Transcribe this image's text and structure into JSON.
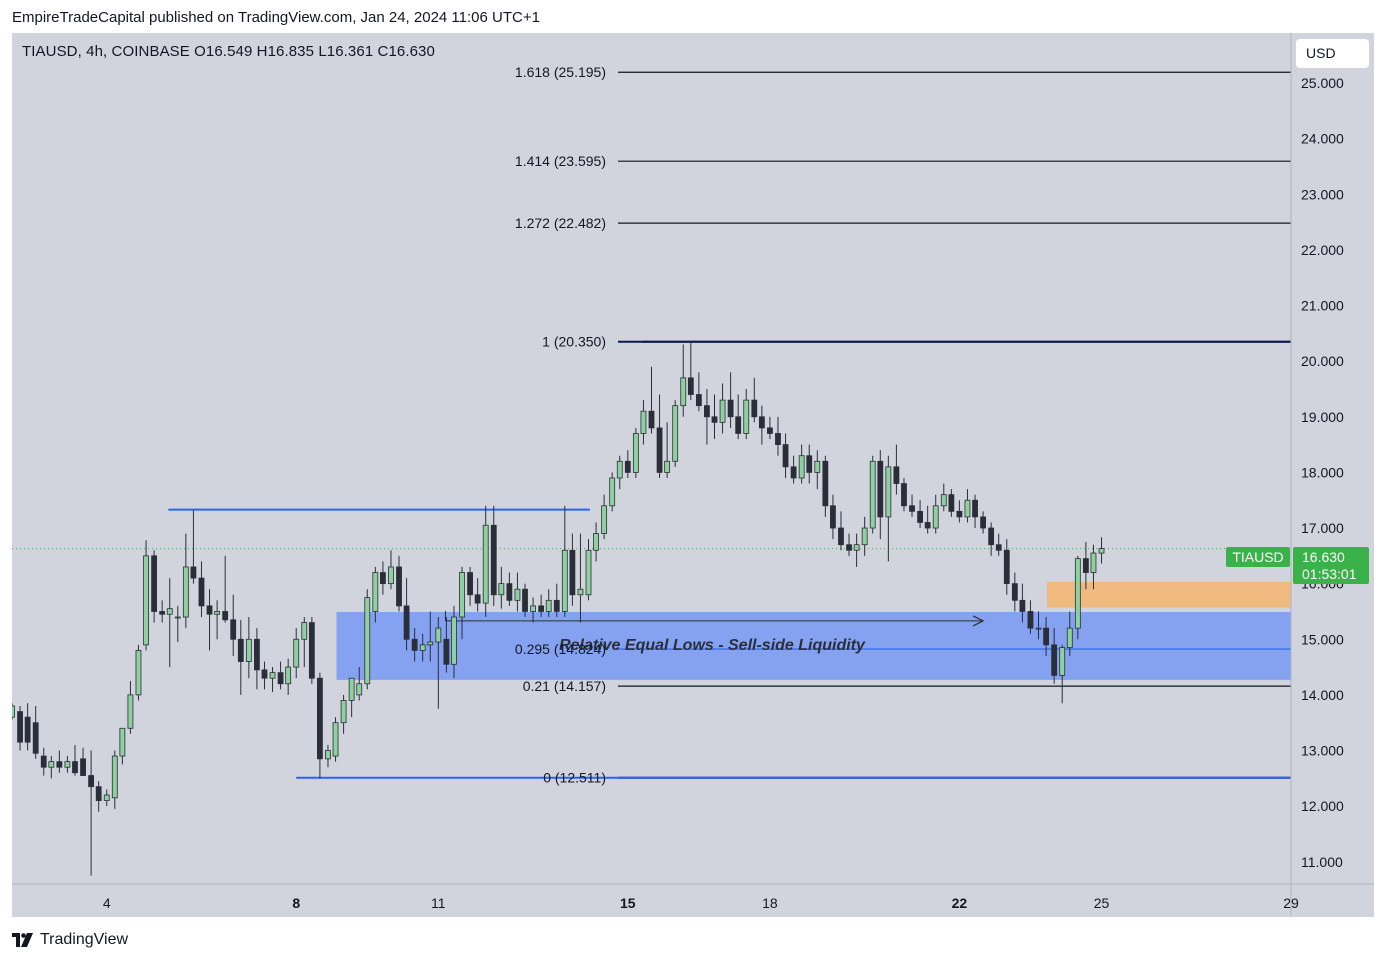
{
  "header": {
    "publisher_line": "EmpireTradeCapital published on TradingView.com, Jan 24, 2024 11:06 UTC+1"
  },
  "symbol_info": {
    "text": "TIAUSD, 4h, COINBASE  O16.549  H16.835  L16.361  C16.630"
  },
  "currency_button": {
    "label": "USD"
  },
  "price_tag": {
    "symbol": "TIAUSD",
    "price": "16.630",
    "countdown": "01:53:01"
  },
  "footer": {
    "brand": "TradingView"
  },
  "annotation": {
    "text": "Relative Equal Lows - Sell-side Liquidity"
  },
  "colors": {
    "background": "#d1d4dc",
    "bull": "#8fd19e",
    "bear": "#2a2e39",
    "fib_dark": "#0d1b4c",
    "blue_line": "#2962ff",
    "zone_blue": "#7b9cf2",
    "zone_orange": "#f3b676",
    "price_green": "#3bb14a"
  },
  "chart_data": {
    "type": "candlestick",
    "symbol": "TIAUSD",
    "timeframe": "4h",
    "exchange": "COINBASE",
    "ohlc_last": {
      "open": 16.549,
      "high": 16.835,
      "low": 16.361,
      "close": 16.63
    },
    "y_axis": {
      "ticks": [
        "11.000",
        "12.000",
        "13.000",
        "14.000",
        "15.000",
        "16.000",
        "17.000",
        "18.000",
        "19.000",
        "20.000",
        "21.000",
        "22.000",
        "23.000",
        "24.000",
        "25.000"
      ],
      "range": [
        10.6,
        25.9
      ]
    },
    "x_axis": {
      "ticks": [
        {
          "label": "4",
          "day": 4,
          "bold": false
        },
        {
          "label": "8",
          "day": 8,
          "bold": true
        },
        {
          "label": "11",
          "day": 11,
          "bold": false
        },
        {
          "label": "15",
          "day": 15,
          "bold": true
        },
        {
          "label": "18",
          "day": 18,
          "bold": false
        },
        {
          "label": "22",
          "day": 22,
          "bold": true
        },
        {
          "label": "25",
          "day": 25,
          "bold": false
        },
        {
          "label": "29",
          "day": 29,
          "bold": false
        }
      ],
      "range_days": [
        2.0,
        29.0
      ]
    },
    "fib_levels": [
      {
        "label": "1.618 (25.195)",
        "price": 25.195
      },
      {
        "label": "1.414 (23.595)",
        "price": 23.595
      },
      {
        "label": "1.272 (22.482)",
        "price": 22.482
      },
      {
        "label": "1 (20.350)",
        "price": 20.35
      },
      {
        "label": "0.295 (14.824)",
        "price": 14.824
      },
      {
        "label": "0.21 (14.157)",
        "price": 14.157
      },
      {
        "label": "0 (12.511)",
        "price": 12.511
      }
    ],
    "horizontal_lines": [
      {
        "price": 17.33,
        "from_day": 5.3,
        "to_day": 14.2
      },
      {
        "price": 20.35,
        "from_day": 15.3,
        "to_day": 29.0
      },
      {
        "price": 12.511,
        "from_day": 8.0,
        "to_day": 29.0
      }
    ],
    "zones": [
      {
        "name": "liquidity-zone",
        "top": 15.49,
        "bottom": 14.27,
        "from_day": 8.85,
        "to_day": 29.0
      },
      {
        "name": "order-block",
        "top": 16.03,
        "bottom": 15.57,
        "from_day": 23.85,
        "to_day": 29.0
      }
    ],
    "arrow": {
      "price": 15.33,
      "from_day": 11.15,
      "to_day": 22.5
    },
    "last_price": 16.63,
    "candles": [
      {
        "day": 2.0,
        "o": 13.6,
        "h": 13.85,
        "l": 13.55,
        "c": 13.8
      },
      {
        "day": 2.17,
        "o": 13.7,
        "h": 13.8,
        "l": 13.0,
        "c": 13.15
      },
      {
        "day": 2.33,
        "o": 13.6,
        "h": 13.85,
        "l": 13.0,
        "c": 13.15
      },
      {
        "day": 2.5,
        "o": 13.5,
        "h": 13.8,
        "l": 12.85,
        "c": 12.95
      },
      {
        "day": 2.67,
        "o": 12.9,
        "h": 13.05,
        "l": 12.55,
        "c": 12.7
      },
      {
        "day": 2.83,
        "o": 12.7,
        "h": 12.9,
        "l": 12.5,
        "c": 12.8
      },
      {
        "day": 3.0,
        "o": 12.8,
        "h": 13.0,
        "l": 12.6,
        "c": 12.7
      },
      {
        "day": 3.17,
        "o": 12.7,
        "h": 12.9,
        "l": 12.6,
        "c": 12.8
      },
      {
        "day": 3.33,
        "o": 12.8,
        "h": 13.1,
        "l": 12.55,
        "c": 12.6
      },
      {
        "day": 3.5,
        "o": 12.85,
        "h": 13.05,
        "l": 12.7,
        "c": 12.55
      },
      {
        "day": 3.67,
        "o": 12.55,
        "h": 13.0,
        "l": 10.75,
        "c": 12.35
      },
      {
        "day": 3.83,
        "o": 12.35,
        "h": 12.45,
        "l": 11.9,
        "c": 12.1
      },
      {
        "day": 4.0,
        "o": 12.1,
        "h": 12.3,
        "l": 12.0,
        "c": 12.2
      },
      {
        "day": 4.17,
        "o": 12.15,
        "h": 13.0,
        "l": 11.95,
        "c": 12.9
      },
      {
        "day": 4.33,
        "o": 12.9,
        "h": 13.3,
        "l": 12.75,
        "c": 13.4
      },
      {
        "day": 4.5,
        "o": 13.4,
        "h": 14.25,
        "l": 13.3,
        "c": 14.0
      },
      {
        "day": 4.67,
        "o": 14.0,
        "h": 14.9,
        "l": 13.9,
        "c": 14.8
      },
      {
        "day": 4.83,
        "o": 14.9,
        "h": 16.78,
        "l": 14.8,
        "c": 16.5
      },
      {
        "day": 5.0,
        "o": 16.5,
        "h": 16.6,
        "l": 15.3,
        "c": 15.5
      },
      {
        "day": 5.17,
        "o": 15.5,
        "h": 15.7,
        "l": 15.3,
        "c": 15.45
      },
      {
        "day": 5.33,
        "o": 15.45,
        "h": 16.1,
        "l": 14.5,
        "c": 15.55
      },
      {
        "day": 5.5,
        "o": 15.4,
        "h": 15.6,
        "l": 14.95,
        "c": 15.4
      },
      {
        "day": 5.67,
        "o": 15.4,
        "h": 16.9,
        "l": 15.2,
        "c": 16.3
      },
      {
        "day": 5.83,
        "o": 16.3,
        "h": 17.32,
        "l": 16.0,
        "c": 16.1
      },
      {
        "day": 6.0,
        "o": 16.1,
        "h": 16.4,
        "l": 15.4,
        "c": 15.6
      },
      {
        "day": 6.17,
        "o": 15.6,
        "h": 15.9,
        "l": 14.8,
        "c": 15.45
      },
      {
        "day": 6.33,
        "o": 15.45,
        "h": 15.7,
        "l": 15.0,
        "c": 15.5
      },
      {
        "day": 6.5,
        "o": 15.5,
        "h": 16.5,
        "l": 15.3,
        "c": 15.35
      },
      {
        "day": 6.67,
        "o": 15.35,
        "h": 15.8,
        "l": 14.7,
        "c": 15.0
      },
      {
        "day": 6.83,
        "o": 15.0,
        "h": 15.35,
        "l": 14.0,
        "c": 14.6
      },
      {
        "day": 7.0,
        "o": 14.6,
        "h": 15.4,
        "l": 14.3,
        "c": 15.0
      },
      {
        "day": 7.17,
        "o": 15.0,
        "h": 15.2,
        "l": 14.1,
        "c": 14.45
      },
      {
        "day": 7.33,
        "o": 14.45,
        "h": 14.6,
        "l": 14.1,
        "c": 14.3
      },
      {
        "day": 7.5,
        "o": 14.3,
        "h": 14.5,
        "l": 14.05,
        "c": 14.4
      },
      {
        "day": 7.67,
        "o": 14.4,
        "h": 14.6,
        "l": 14.1,
        "c": 14.2
      },
      {
        "day": 7.83,
        "o": 14.2,
        "h": 14.65,
        "l": 14.0,
        "c": 14.5
      },
      {
        "day": 8.0,
        "o": 14.5,
        "h": 15.2,
        "l": 14.3,
        "c": 15.0
      },
      {
        "day": 8.17,
        "o": 15.0,
        "h": 15.4,
        "l": 14.5,
        "c": 15.3
      },
      {
        "day": 8.33,
        "o": 15.3,
        "h": 15.4,
        "l": 14.2,
        "c": 14.3
      },
      {
        "day": 8.5,
        "o": 14.3,
        "h": 14.4,
        "l": 12.5,
        "c": 12.85
      },
      {
        "day": 8.67,
        "o": 12.85,
        "h": 13.1,
        "l": 12.7,
        "c": 13.0
      },
      {
        "day": 8.83,
        "o": 12.9,
        "h": 13.6,
        "l": 12.8,
        "c": 13.5
      },
      {
        "day": 9.0,
        "o": 13.5,
        "h": 14.0,
        "l": 13.3,
        "c": 13.9
      },
      {
        "day": 9.17,
        "o": 13.9,
        "h": 14.3,
        "l": 13.6,
        "c": 14.3
      },
      {
        "day": 9.33,
        "o": 14.0,
        "h": 14.5,
        "l": 13.9,
        "c": 14.2
      },
      {
        "day": 9.5,
        "o": 14.2,
        "h": 15.9,
        "l": 14.1,
        "c": 15.75
      },
      {
        "day": 9.67,
        "o": 15.5,
        "h": 16.3,
        "l": 15.3,
        "c": 16.2
      },
      {
        "day": 9.83,
        "o": 16.2,
        "h": 16.4,
        "l": 15.8,
        "c": 16.0
      },
      {
        "day": 10.0,
        "o": 16.0,
        "h": 16.6,
        "l": 15.9,
        "c": 16.3
      },
      {
        "day": 10.17,
        "o": 16.3,
        "h": 16.5,
        "l": 15.5,
        "c": 15.6
      },
      {
        "day": 10.33,
        "o": 15.6,
        "h": 16.1,
        "l": 14.8,
        "c": 15.0
      },
      {
        "day": 10.5,
        "o": 15.0,
        "h": 15.2,
        "l": 14.6,
        "c": 14.8
      },
      {
        "day": 10.67,
        "o": 14.8,
        "h": 15.1,
        "l": 14.6,
        "c": 14.9
      },
      {
        "day": 10.83,
        "o": 14.9,
        "h": 15.5,
        "l": 14.6,
        "c": 14.95
      },
      {
        "day": 11.0,
        "o": 14.95,
        "h": 15.4,
        "l": 13.75,
        "c": 15.2
      },
      {
        "day": 11.17,
        "o": 15.0,
        "h": 15.4,
        "l": 14.4,
        "c": 14.55
      },
      {
        "day": 11.33,
        "o": 14.55,
        "h": 15.6,
        "l": 14.3,
        "c": 15.4
      },
      {
        "day": 11.5,
        "o": 15.4,
        "h": 16.3,
        "l": 15.0,
        "c": 16.2
      },
      {
        "day": 11.67,
        "o": 16.2,
        "h": 16.3,
        "l": 15.6,
        "c": 15.8
      },
      {
        "day": 11.83,
        "o": 15.8,
        "h": 16.1,
        "l": 15.5,
        "c": 15.65
      },
      {
        "day": 12.0,
        "o": 15.65,
        "h": 17.4,
        "l": 15.4,
        "c": 17.05
      },
      {
        "day": 12.17,
        "o": 17.05,
        "h": 17.4,
        "l": 15.6,
        "c": 15.8
      },
      {
        "day": 12.33,
        "o": 15.8,
        "h": 16.3,
        "l": 15.55,
        "c": 16.0
      },
      {
        "day": 12.5,
        "o": 16.0,
        "h": 16.2,
        "l": 15.6,
        "c": 15.7
      },
      {
        "day": 12.67,
        "o": 15.7,
        "h": 16.2,
        "l": 15.5,
        "c": 15.9
      },
      {
        "day": 12.83,
        "o": 15.9,
        "h": 16.0,
        "l": 15.4,
        "c": 15.5
      },
      {
        "day": 13.0,
        "o": 15.5,
        "h": 15.75,
        "l": 15.3,
        "c": 15.6
      },
      {
        "day": 13.17,
        "o": 15.6,
        "h": 15.8,
        "l": 15.4,
        "c": 15.5
      },
      {
        "day": 13.33,
        "o": 15.5,
        "h": 15.9,
        "l": 15.4,
        "c": 15.7
      },
      {
        "day": 13.5,
        "o": 15.7,
        "h": 16.0,
        "l": 15.4,
        "c": 15.5
      },
      {
        "day": 13.67,
        "o": 15.5,
        "h": 17.4,
        "l": 15.4,
        "c": 16.6
      },
      {
        "day": 13.83,
        "o": 16.6,
        "h": 16.9,
        "l": 15.6,
        "c": 15.8
      },
      {
        "day": 14.0,
        "o": 15.8,
        "h": 16.9,
        "l": 15.3,
        "c": 15.9
      },
      {
        "day": 14.17,
        "o": 15.8,
        "h": 16.8,
        "l": 15.7,
        "c": 16.6
      },
      {
        "day": 14.33,
        "o": 16.6,
        "h": 17.1,
        "l": 16.4,
        "c": 16.9
      },
      {
        "day": 14.5,
        "o": 16.9,
        "h": 17.6,
        "l": 16.8,
        "c": 17.4
      },
      {
        "day": 14.67,
        "o": 17.4,
        "h": 18.0,
        "l": 17.3,
        "c": 17.9
      },
      {
        "day": 14.83,
        "o": 17.9,
        "h": 18.3,
        "l": 17.7,
        "c": 18.2
      },
      {
        "day": 15.0,
        "o": 18.2,
        "h": 18.4,
        "l": 17.9,
        "c": 18.0
      },
      {
        "day": 15.17,
        "o": 18.0,
        "h": 18.8,
        "l": 17.9,
        "c": 18.7
      },
      {
        "day": 15.33,
        "o": 18.7,
        "h": 19.3,
        "l": 18.5,
        "c": 19.1
      },
      {
        "day": 15.5,
        "o": 19.1,
        "h": 19.9,
        "l": 18.7,
        "c": 18.8
      },
      {
        "day": 15.67,
        "o": 18.8,
        "h": 19.4,
        "l": 17.9,
        "c": 18.0
      },
      {
        "day": 15.83,
        "o": 18.0,
        "h": 18.9,
        "l": 17.9,
        "c": 18.2
      },
      {
        "day": 16.0,
        "o": 18.2,
        "h": 19.3,
        "l": 18.1,
        "c": 19.2
      },
      {
        "day": 16.17,
        "o": 19.2,
        "h": 20.3,
        "l": 19.0,
        "c": 19.7
      },
      {
        "day": 16.33,
        "o": 19.7,
        "h": 20.35,
        "l": 19.3,
        "c": 19.4
      },
      {
        "day": 16.5,
        "o": 19.4,
        "h": 19.8,
        "l": 19.1,
        "c": 19.2
      },
      {
        "day": 16.67,
        "o": 19.2,
        "h": 19.5,
        "l": 18.5,
        "c": 19.0
      },
      {
        "day": 16.83,
        "o": 19.0,
        "h": 19.4,
        "l": 18.6,
        "c": 18.9
      },
      {
        "day": 17.0,
        "o": 18.9,
        "h": 19.6,
        "l": 18.7,
        "c": 19.3
      },
      {
        "day": 17.17,
        "o": 19.3,
        "h": 19.8,
        "l": 18.8,
        "c": 19.0
      },
      {
        "day": 17.33,
        "o": 19.0,
        "h": 19.4,
        "l": 18.6,
        "c": 18.7
      },
      {
        "day": 17.5,
        "o": 18.7,
        "h": 19.5,
        "l": 18.6,
        "c": 19.3
      },
      {
        "day": 17.67,
        "o": 19.3,
        "h": 19.7,
        "l": 18.9,
        "c": 19.0
      },
      {
        "day": 17.83,
        "o": 19.0,
        "h": 19.2,
        "l": 18.5,
        "c": 18.8
      },
      {
        "day": 18.0,
        "o": 18.8,
        "h": 19.0,
        "l": 18.6,
        "c": 18.7
      },
      {
        "day": 18.17,
        "o": 18.7,
        "h": 19.0,
        "l": 18.3,
        "c": 18.5
      },
      {
        "day": 18.33,
        "o": 18.5,
        "h": 18.7,
        "l": 17.9,
        "c": 18.1
      },
      {
        "day": 18.5,
        "o": 18.1,
        "h": 18.3,
        "l": 17.8,
        "c": 17.9
      },
      {
        "day": 18.67,
        "o": 17.9,
        "h": 18.5,
        "l": 17.8,
        "c": 18.3
      },
      {
        "day": 18.83,
        "o": 18.3,
        "h": 18.5,
        "l": 17.8,
        "c": 18.0
      },
      {
        "day": 19.0,
        "o": 18.0,
        "h": 18.4,
        "l": 17.7,
        "c": 18.2
      },
      {
        "day": 19.17,
        "o": 18.2,
        "h": 18.3,
        "l": 17.2,
        "c": 17.4
      },
      {
        "day": 19.33,
        "o": 17.4,
        "h": 17.6,
        "l": 16.8,
        "c": 17.0
      },
      {
        "day": 19.5,
        "o": 17.0,
        "h": 17.3,
        "l": 16.6,
        "c": 16.7
      },
      {
        "day": 19.67,
        "o": 16.7,
        "h": 16.9,
        "l": 16.5,
        "c": 16.6
      },
      {
        "day": 19.83,
        "o": 16.6,
        "h": 16.9,
        "l": 16.3,
        "c": 16.7
      },
      {
        "day": 20.0,
        "o": 16.7,
        "h": 17.2,
        "l": 16.5,
        "c": 17.0
      },
      {
        "day": 20.17,
        "o": 17.0,
        "h": 18.3,
        "l": 16.9,
        "c": 18.2
      },
      {
        "day": 20.33,
        "o": 18.2,
        "h": 18.4,
        "l": 16.8,
        "c": 17.2
      },
      {
        "day": 20.5,
        "o": 17.2,
        "h": 18.3,
        "l": 16.4,
        "c": 18.1
      },
      {
        "day": 20.67,
        "o": 18.1,
        "h": 18.5,
        "l": 17.6,
        "c": 17.8
      },
      {
        "day": 20.83,
        "o": 17.8,
        "h": 17.9,
        "l": 17.3,
        "c": 17.4
      },
      {
        "day": 21.0,
        "o": 17.4,
        "h": 17.6,
        "l": 17.2,
        "c": 17.3
      },
      {
        "day": 21.17,
        "o": 17.3,
        "h": 17.5,
        "l": 17.0,
        "c": 17.1
      },
      {
        "day": 21.33,
        "o": 17.1,
        "h": 17.4,
        "l": 16.9,
        "c": 17.0
      },
      {
        "day": 21.5,
        "o": 17.0,
        "h": 17.6,
        "l": 16.9,
        "c": 17.4
      },
      {
        "day": 21.67,
        "o": 17.4,
        "h": 17.8,
        "l": 17.3,
        "c": 17.6
      },
      {
        "day": 21.83,
        "o": 17.6,
        "h": 17.7,
        "l": 17.2,
        "c": 17.3
      },
      {
        "day": 22.0,
        "o": 17.3,
        "h": 17.5,
        "l": 17.1,
        "c": 17.2
      },
      {
        "day": 22.17,
        "o": 17.2,
        "h": 17.7,
        "l": 17.1,
        "c": 17.5
      },
      {
        "day": 22.33,
        "o": 17.5,
        "h": 17.6,
        "l": 17.0,
        "c": 17.2
      },
      {
        "day": 22.5,
        "o": 17.2,
        "h": 17.3,
        "l": 16.9,
        "c": 17.0
      },
      {
        "day": 22.67,
        "o": 17.0,
        "h": 17.1,
        "l": 16.5,
        "c": 16.7
      },
      {
        "day": 22.83,
        "o": 16.7,
        "h": 16.9,
        "l": 16.5,
        "c": 16.6
      },
      {
        "day": 23.0,
        "o": 16.6,
        "h": 16.8,
        "l": 15.8,
        "c": 16.0
      },
      {
        "day": 23.17,
        "o": 16.0,
        "h": 16.2,
        "l": 15.5,
        "c": 15.7
      },
      {
        "day": 23.33,
        "o": 15.7,
        "h": 16.0,
        "l": 15.3,
        "c": 15.5
      },
      {
        "day": 23.5,
        "o": 15.5,
        "h": 15.7,
        "l": 15.1,
        "c": 15.2
      },
      {
        "day": 23.67,
        "o": 15.2,
        "h": 15.5,
        "l": 15.0,
        "c": 15.2
      },
      {
        "day": 23.83,
        "o": 15.2,
        "h": 15.4,
        "l": 14.7,
        "c": 14.9
      },
      {
        "day": 24.0,
        "o": 14.9,
        "h": 15.2,
        "l": 14.2,
        "c": 14.35
      },
      {
        "day": 24.17,
        "o": 14.35,
        "h": 14.9,
        "l": 13.85,
        "c": 14.85
      },
      {
        "day": 24.33,
        "o": 14.85,
        "h": 15.5,
        "l": 14.7,
        "c": 15.2
      },
      {
        "day": 24.5,
        "o": 15.2,
        "h": 16.5,
        "l": 15.0,
        "c": 16.45
      },
      {
        "day": 24.67,
        "o": 16.45,
        "h": 16.75,
        "l": 15.9,
        "c": 16.2
      },
      {
        "day": 24.83,
        "o": 16.2,
        "h": 16.7,
        "l": 15.9,
        "c": 16.55
      },
      {
        "day": 25.0,
        "o": 16.549,
        "h": 16.835,
        "l": 16.361,
        "c": 16.63
      }
    ]
  }
}
